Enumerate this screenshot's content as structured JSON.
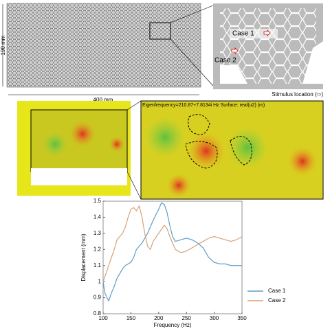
{
  "top_panel": {
    "height_label": "190 mm",
    "width_label": "400 mm",
    "case1": "Case 1",
    "case2": "Case 2",
    "stimulus": "Stimulus location (⇨)"
  },
  "middle_panel": {
    "caption": "Eigenfrequency=210.87+7.8134i Hz Surface: real(u2) (m)"
  },
  "chart_data": {
    "type": "line",
    "xlabel": "Frequency (Hz)",
    "ylabel": "Displacement (mm)",
    "xlim": [
      100,
      350
    ],
    "xticks": [
      100,
      150,
      200,
      250,
      300,
      350
    ],
    "ylim": [
      0.8,
      1.5
    ],
    "yticks": [
      0.8,
      0.9,
      1.0,
      1.1,
      1.2,
      1.3,
      1.4,
      1.5
    ],
    "legend": "lower right",
    "series": [
      {
        "name": "Case 1",
        "color": "#5b9ec9",
        "x": [
          100,
          103,
          107,
          110,
          115,
          120,
          125,
          130,
          135,
          140,
          150,
          155,
          160,
          170,
          180,
          190,
          200,
          205,
          210,
          215,
          220,
          225,
          230,
          240,
          250,
          260,
          270,
          280,
          290,
          300,
          310,
          320,
          330,
          340,
          350
        ],
        "values": [
          1.0,
          0.93,
          0.9,
          0.88,
          0.93,
          0.97,
          1.02,
          1.05,
          1.08,
          1.1,
          1.12,
          1.15,
          1.2,
          1.24,
          1.3,
          1.38,
          1.45,
          1.49,
          1.48,
          1.43,
          1.35,
          1.28,
          1.25,
          1.26,
          1.27,
          1.26,
          1.24,
          1.21,
          1.15,
          1.12,
          1.11,
          1.11,
          1.1,
          1.1,
          1.1
        ]
      },
      {
        "name": "Case 2",
        "color": "#d4a37a",
        "x": [
          100,
          105,
          110,
          115,
          120,
          125,
          130,
          135,
          140,
          145,
          150,
          155,
          160,
          165,
          170,
          175,
          180,
          185,
          190,
          200,
          210,
          215,
          220,
          230,
          240,
          250,
          260,
          270,
          280,
          290,
          300,
          310,
          320,
          330,
          340,
          350
        ],
        "values": [
          1.0,
          1.05,
          1.1,
          1.15,
          1.2,
          1.26,
          1.28,
          1.3,
          1.34,
          1.4,
          1.45,
          1.46,
          1.44,
          1.47,
          1.4,
          1.3,
          1.22,
          1.2,
          1.25,
          1.3,
          1.35,
          1.33,
          1.28,
          1.2,
          1.18,
          1.19,
          1.21,
          1.23,
          1.25,
          1.27,
          1.28,
          1.27,
          1.26,
          1.25,
          1.26,
          1.28
        ]
      }
    ]
  }
}
